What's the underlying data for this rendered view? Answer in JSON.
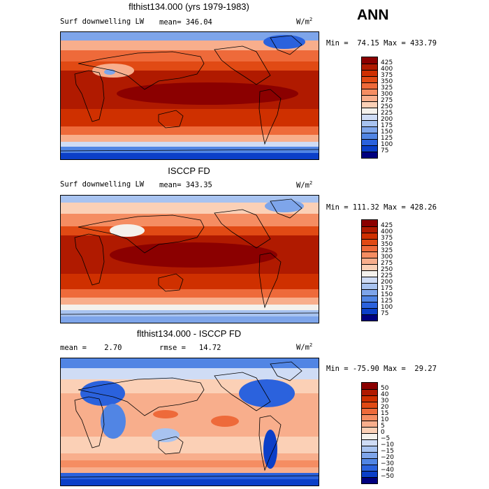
{
  "season": "ANN",
  "panels": [
    {
      "title": "flthist134.000 (yrs 1979-1983)",
      "variable": "Surf downwelling LW",
      "stat_left": "mean= 346.04",
      "stat_right": "",
      "units_base": "W/m",
      "units_exp": "2",
      "minmax": "Min =  74.15 Max = 433.79",
      "colorbar": {
        "labels": [
          "425",
          "400",
          "375",
          "350",
          "325",
          "300",
          "275",
          "250",
          "225",
          "200",
          "175",
          "150",
          "125",
          "100",
          "75"
        ],
        "colors": [
          "#8b0000",
          "#b01a00",
          "#cf3000",
          "#e14a14",
          "#ee6a3a",
          "#f58d62",
          "#f8ae8c",
          "#fbd0b6",
          "#f4f1ec",
          "#cfdcf5",
          "#a8c3f0",
          "#7ea5ea",
          "#5185e4",
          "#2b62dd",
          "#0b3fc8",
          "#00007f"
        ]
      }
    },
    {
      "title": "ISCCP FD",
      "variable": "Surf downwelling LW",
      "stat_left": "mean= 343.35",
      "stat_right": "",
      "units_base": "W/m",
      "units_exp": "2",
      "minmax": "Min = 111.32 Max = 428.26",
      "colorbar": {
        "labels": [
          "425",
          "400",
          "375",
          "350",
          "325",
          "300",
          "275",
          "250",
          "225",
          "200",
          "175",
          "150",
          "125",
          "100",
          "75"
        ],
        "colors": [
          "#8b0000",
          "#b01a00",
          "#cf3000",
          "#e14a14",
          "#ee6a3a",
          "#f58d62",
          "#f8ae8c",
          "#fbd0b6",
          "#f4f1ec",
          "#cfdcf5",
          "#a8c3f0",
          "#7ea5ea",
          "#5185e4",
          "#2b62dd",
          "#0b3fc8",
          "#00007f"
        ]
      }
    },
    {
      "title": "flthist134.000 - ISCCP FD",
      "variable": "",
      "stat_left": "mean =    2.70",
      "stat_right": "rmse =   14.72",
      "units_base": "W/m",
      "units_exp": "2",
      "minmax": "Min = -75.90 Max =  29.27",
      "colorbar": {
        "labels": [
          "50",
          "40",
          "30",
          "20",
          "15",
          "10",
          "5",
          "0",
          "−5",
          "−10",
          "−15",
          "−20",
          "−30",
          "−40",
          "−50"
        ],
        "colors": [
          "#8b0000",
          "#b01a00",
          "#cf3000",
          "#e14a14",
          "#ee6a3a",
          "#f58d62",
          "#f8ae8c",
          "#fbd0b6",
          "#f4f1ec",
          "#cfdcf5",
          "#a8c3f0",
          "#7ea5ea",
          "#5185e4",
          "#2b62dd",
          "#0b3fc8",
          "#00007f"
        ]
      }
    }
  ]
}
